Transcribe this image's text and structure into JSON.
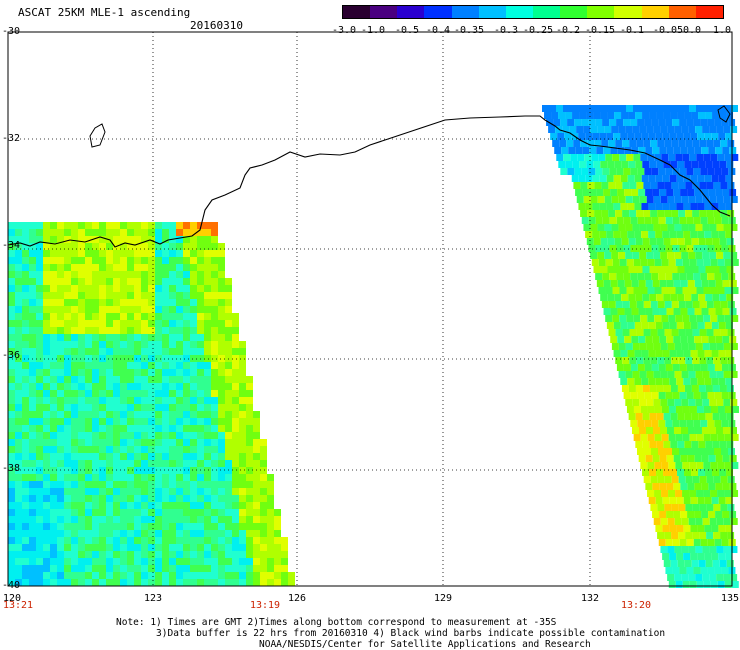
{
  "title": "ASCAT 25KM MLE-1 ascending",
  "date": "20160310",
  "colorbar": {
    "labels": [
      "-3.0",
      "-1.0",
      "-0.5",
      "-0.4",
      "-0.35",
      "-0.3",
      "-0.25",
      "-0.2",
      "-0.15",
      "-0.1",
      "-0.05",
      "0.0",
      "1.0"
    ],
    "colors": [
      "#2a0030",
      "#4a0080",
      "#2a00d0",
      "#0030ff",
      "#0080ff",
      "#00c0ff",
      "#00ffe0",
      "#00ff90",
      "#30ff30",
      "#80ff00",
      "#d0ff00",
      "#ffd000",
      "#ff6000",
      "#ff2000"
    ]
  },
  "map": {
    "lat_labels": [
      "-30",
      "-32",
      "-34",
      "-36",
      "-38",
      "-40"
    ],
    "lon_labels": [
      "120",
      "123",
      "126",
      "129",
      "132",
      "135"
    ],
    "lat_range": [
      -40,
      -30
    ],
    "lon_range": [
      120,
      135
    ],
    "gridlines": "dotted",
    "time_labels": [
      "13:21",
      "13:19",
      "13:20"
    ]
  },
  "notes": {
    "line1": "Note: 1) Times are GMT 2)Times along bottom correspond to measurement at -35S",
    "line2": "3)Data buffer is 22 hrs from 20160310 4) Black wind barbs indicate possible contamination",
    "line3": "NOAA/NESDIS/Center for Satellite Applications and Research"
  }
}
